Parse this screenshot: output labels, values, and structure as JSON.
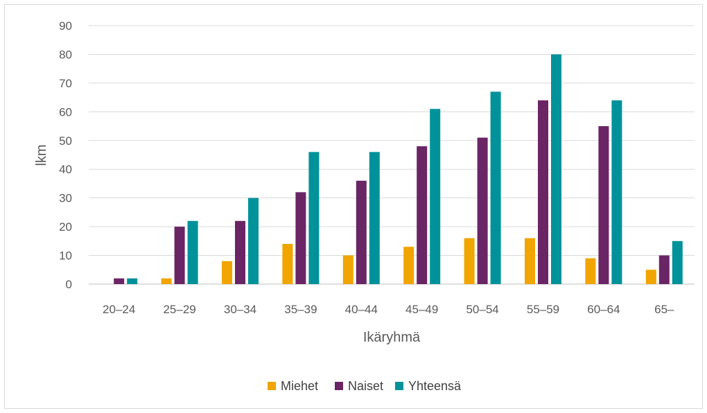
{
  "chart_data": {
    "type": "bar",
    "title": "",
    "xlabel": "Ikäryhmä",
    "ylabel": "lkm",
    "ylim": [
      0,
      90
    ],
    "yticks": [
      0,
      10,
      20,
      30,
      40,
      50,
      60,
      70,
      80,
      90
    ],
    "grid": true,
    "legend_position": "bottom",
    "categories": [
      "20–24",
      "25–29",
      "30–34",
      "35–39",
      "40–44",
      "45–49",
      "50–54",
      "55–59",
      "60–64",
      "65–"
    ],
    "series": [
      {
        "name": "Miehet",
        "color": "#f0a500",
        "values": [
          0,
          2,
          8,
          14,
          10,
          13,
          16,
          16,
          9,
          5
        ]
      },
      {
        "name": "Naiset",
        "color": "#6a2565",
        "values": [
          2,
          20,
          22,
          32,
          36,
          48,
          51,
          64,
          55,
          10
        ]
      },
      {
        "name": "Yhteensä",
        "color": "#00929a",
        "values": [
          2,
          22,
          30,
          46,
          46,
          61,
          67,
          80,
          64,
          15
        ]
      }
    ]
  }
}
